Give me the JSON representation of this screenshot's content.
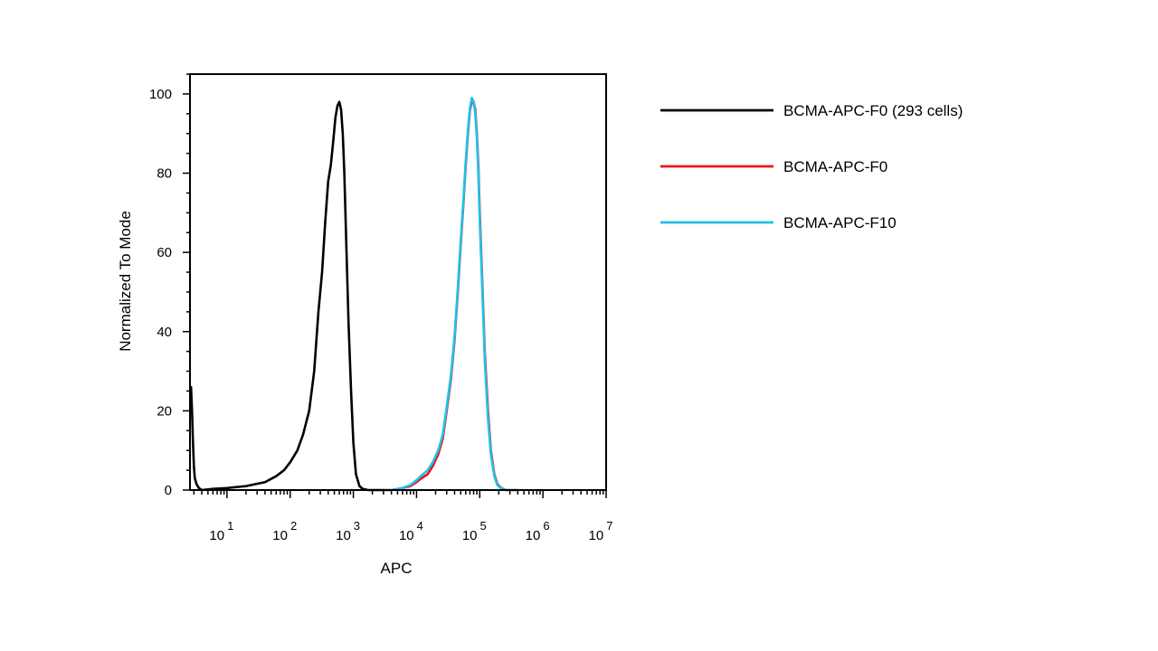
{
  "chart_data": {
    "type": "line",
    "title": "",
    "xlabel": "APC",
    "ylabel": "Normalized To Mode",
    "x_scale": "log",
    "xlim": [
      2.6,
      10000000
    ],
    "ylim": [
      0,
      105
    ],
    "x_ticks": [
      {
        "base": "10",
        "exp": "1",
        "value": 10
      },
      {
        "base": "10",
        "exp": "2",
        "value": 100
      },
      {
        "base": "10",
        "exp": "3",
        "value": 1000
      },
      {
        "base": "10",
        "exp": "4",
        "value": 10000
      },
      {
        "base": "10",
        "exp": "5",
        "value": 100000
      },
      {
        "base": "10",
        "exp": "6",
        "value": 1000000
      },
      {
        "base": "10",
        "exp": "7",
        "value": 10000000
      }
    ],
    "y_ticks": [
      "0",
      "20",
      "40",
      "60",
      "80",
      "100"
    ],
    "y_tick_values": [
      0,
      20,
      40,
      60,
      80,
      100
    ],
    "grid": false,
    "legend_position": "right",
    "series": [
      {
        "name": "BCMA-APC-F0 (293 cells)",
        "color": "#000000",
        "x": [
          2.7,
          2.8,
          2.9,
          3.0,
          3.1,
          3.3,
          3.6,
          4,
          6,
          10,
          20,
          40,
          60,
          80,
          100,
          130,
          160,
          200,
          240,
          280,
          320,
          360,
          400,
          440,
          480,
          520,
          560,
          600,
          640,
          680,
          720,
          780,
          840,
          920,
          1000,
          1100,
          1250,
          1400,
          1700,
          2000,
          2500,
          3000
        ],
        "values": [
          26,
          20,
          12,
          6,
          3,
          1.5,
          0.5,
          0,
          0.3,
          0.5,
          1,
          2,
          3.5,
          5,
          7,
          10,
          14,
          20,
          30,
          45,
          55,
          68,
          78,
          82,
          88,
          94,
          97,
          98,
          96,
          90,
          80,
          60,
          42,
          25,
          12,
          4,
          1,
          0.3,
          0,
          0,
          0,
          0
        ]
      },
      {
        "name": "BCMA-APC-F0",
        "color": "#e8141c",
        "x": [
          2000,
          4000,
          6000,
          8000,
          10000,
          12000,
          15000,
          18000,
          22000,
          26000,
          30000,
          35000,
          40000,
          45000,
          50000,
          55000,
          60000,
          65000,
          70000,
          75000,
          80000,
          85000,
          90000,
          95000,
          100000,
          110000,
          120000,
          135000,
          150000,
          170000,
          190000,
          220000,
          260000,
          300000,
          400000
        ],
        "values": [
          0,
          0,
          0.5,
          1,
          2,
          3,
          4,
          6,
          9,
          13,
          20,
          28,
          38,
          50,
          62,
          72,
          82,
          90,
          96,
          98,
          98,
          96,
          90,
          82,
          70,
          52,
          35,
          20,
          10,
          4,
          1.5,
          0.5,
          0,
          0,
          0
        ]
      },
      {
        "name": "BCMA-APC-F10",
        "color": "#1ec3e8",
        "x": [
          2000,
          4000,
          6000,
          8000,
          10000,
          12000,
          15000,
          18000,
          22000,
          26000,
          30000,
          35000,
          40000,
          45000,
          50000,
          55000,
          60000,
          65000,
          70000,
          75000,
          80000,
          85000,
          90000,
          95000,
          100000,
          110000,
          120000,
          135000,
          150000,
          170000,
          190000,
          220000,
          260000,
          300000,
          400000
        ],
        "values": [
          0,
          0,
          0.5,
          1.3,
          2.5,
          3.7,
          5,
          7,
          10,
          14,
          21,
          29,
          39,
          51,
          63,
          73,
          83,
          91,
          96.5,
          99,
          98,
          95,
          89,
          80,
          68,
          50,
          33,
          18,
          9,
          3.5,
          1.2,
          0.4,
          0,
          0,
          0
        ]
      }
    ]
  }
}
